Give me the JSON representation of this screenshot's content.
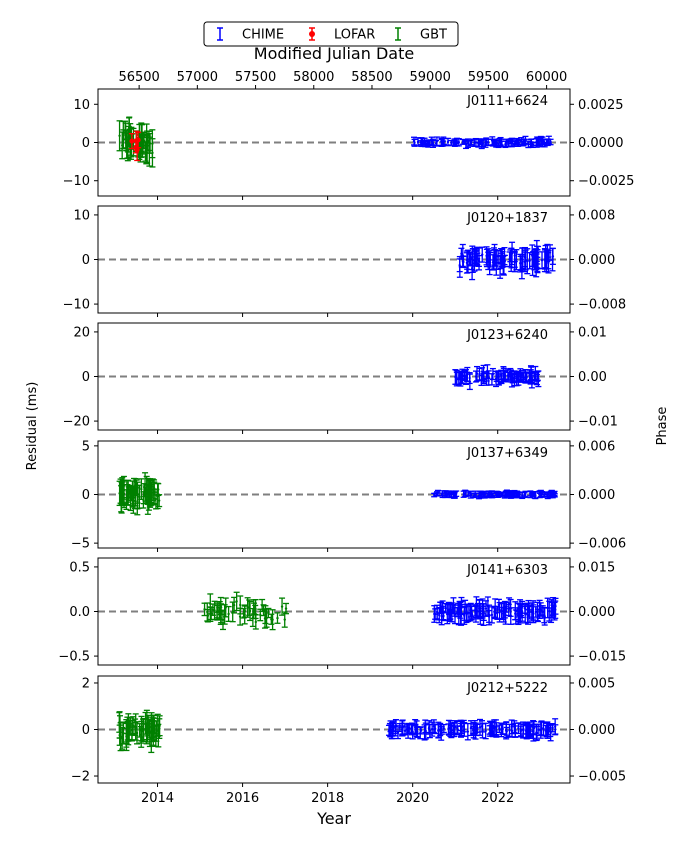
{
  "chart_data": {
    "type": "scatter",
    "description_free": true,
    "xlabel": "Year",
    "xlabel_top": "Modified Julian Date",
    "ylabel_left": "Residual (ms)",
    "ylabel_right": "Phase",
    "x_range_year": [
      2012.6,
      2023.7
    ],
    "x_ticks_year": [
      "2014",
      "2016",
      "2018",
      "2020",
      "2022"
    ],
    "x_ticks_mjd": [
      "56500",
      "57000",
      "57500",
      "58000",
      "58500",
      "59000",
      "59500",
      "60000"
    ],
    "legend": {
      "placement": "top-center",
      "entries": [
        {
          "name": "CHIME",
          "color": "#0000ff",
          "marker": "x"
        },
        {
          "name": "LOFAR",
          "color": "#ff0000",
          "marker": "o"
        },
        {
          "name": "GBT",
          "color": "#008000",
          "marker": "x"
        }
      ]
    },
    "panels": [
      {
        "name": "J0111+6624",
        "ylim": [
          -14,
          14
        ],
        "yticks": [
          "10",
          "0",
          "−10"
        ],
        "phase_ticks": [
          "0.0025",
          "0.0000",
          "−0.0025"
        ],
        "series": [
          {
            "name": "GBT",
            "x_range": [
              2013.1,
              2013.9
            ],
            "spread": 3.0,
            "err": 2.8,
            "n": 48
          },
          {
            "name": "LOFAR",
            "x_range": [
              2013.35,
              2013.55
            ],
            "spread": 2.0,
            "err": 2.0,
            "n": 5
          },
          {
            "name": "CHIME",
            "x_range": [
              2020.0,
              2023.3
            ],
            "spread": 0.6,
            "err": 0.8,
            "n": 110
          }
        ]
      },
      {
        "name": "J0120+1837",
        "ylim": [
          -12,
          12
        ],
        "yticks": [
          "10",
          "0",
          "−10"
        ],
        "phase_ticks": [
          "0.008",
          "0.000",
          "−0.008"
        ],
        "series": [
          {
            "name": "CHIME",
            "x_range": [
              2021.1,
              2023.3
            ],
            "spread": 1.5,
            "err": 2.0,
            "n": 95
          }
        ]
      },
      {
        "name": "J0123+6240",
        "ylim": [
          -24,
          24
        ],
        "yticks": [
          "20",
          "0",
          "−20"
        ],
        "phase_ticks": [
          "0.01",
          "0.00",
          "−0.01"
        ],
        "series": [
          {
            "name": "CHIME",
            "x_range": [
              2021.0,
              2023.0
            ],
            "spread": 2.0,
            "err": 2.5,
            "n": 80
          }
        ]
      },
      {
        "name": "J0137+6349",
        "ylim": [
          -5.5,
          5.5
        ],
        "yticks": [
          "5",
          "0",
          "−5"
        ],
        "phase_ticks": [
          "0.006",
          "0.000",
          "−0.006"
        ],
        "series": [
          {
            "name": "GBT",
            "x_range": [
              2013.1,
              2014.05
            ],
            "spread": 0.8,
            "err": 1.0,
            "n": 60
          },
          {
            "name": "CHIME",
            "x_range": [
              2020.5,
              2023.4
            ],
            "spread": 0.15,
            "err": 0.25,
            "n": 110
          }
        ]
      },
      {
        "name": "J0141+6303",
        "ylim": [
          -0.6,
          0.6
        ],
        "yticks": [
          "0.5",
          "0.0",
          "−0.5"
        ],
        "phase_ticks": [
          "0.015",
          "0.000",
          "−0.015"
        ],
        "series": [
          {
            "name": "GBT",
            "x_range": [
              2015.1,
              2017.1
            ],
            "spread": 0.1,
            "err": 0.08,
            "n": 50
          },
          {
            "name": "CHIME",
            "x_range": [
              2020.5,
              2023.4
            ],
            "spread": 0.06,
            "err": 0.08,
            "n": 120
          }
        ]
      },
      {
        "name": "J0212+5222",
        "ylim": [
          -2.3,
          2.3
        ],
        "yticks": [
          "2",
          "0",
          "−2"
        ],
        "phase_ticks": [
          "0.005",
          "0.000",
          "−0.005"
        ],
        "series": [
          {
            "name": "GBT",
            "x_range": [
              2013.1,
              2014.05
            ],
            "spread": 0.35,
            "err": 0.45,
            "n": 60
          },
          {
            "name": "CHIME",
            "x_range": [
              2019.4,
              2023.4
            ],
            "spread": 0.15,
            "err": 0.25,
            "n": 140
          }
        ]
      }
    ]
  }
}
